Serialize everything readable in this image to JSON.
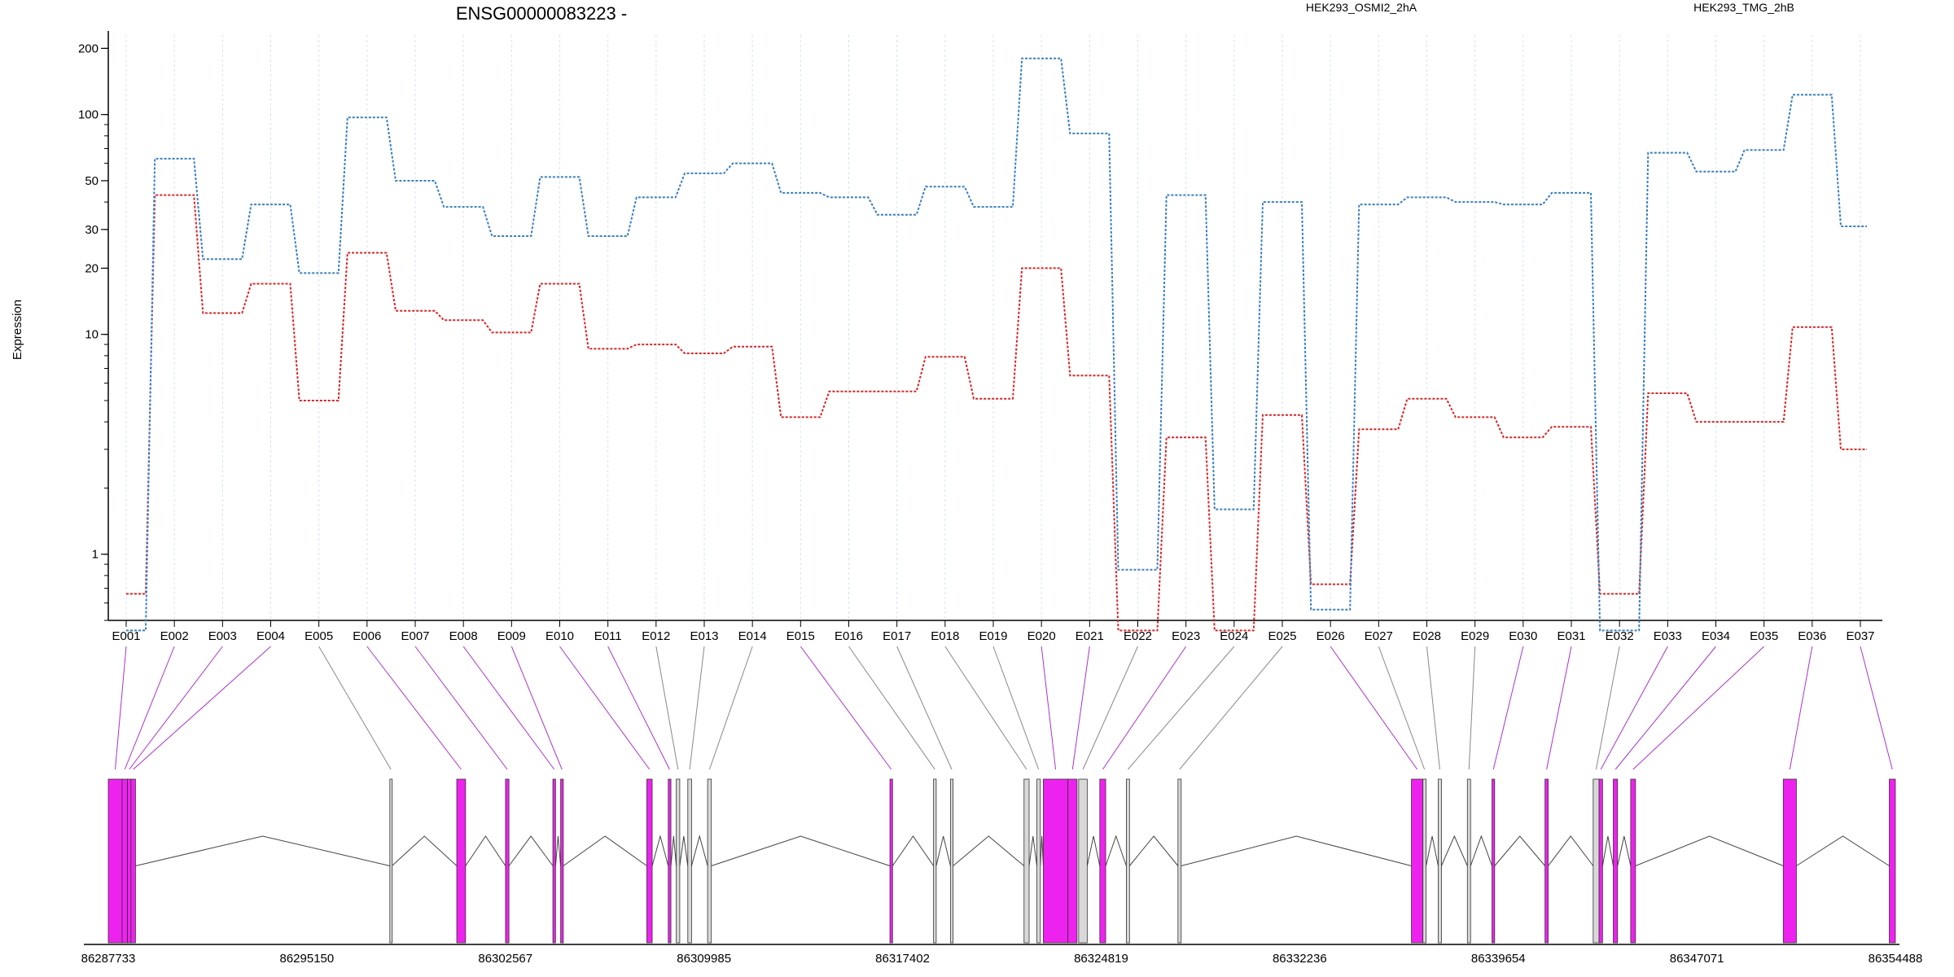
{
  "chart_data": {
    "type": "line",
    "title": "ENSG00000083223 -",
    "ylabel": "Expression",
    "yscale": "log",
    "ylim": [
      0.5,
      230
    ],
    "yticks": [
      "1",
      "10",
      "20",
      "30",
      "50",
      "100",
      "200"
    ],
    "categories": [
      "E001",
      "E002",
      "E003",
      "E004",
      "E005",
      "E006",
      "E007",
      "E008",
      "E009",
      "E010",
      "E011",
      "E012",
      "E013",
      "E014",
      "E015",
      "E016",
      "E017",
      "E018",
      "E019",
      "E020",
      "E021",
      "E022",
      "E023",
      "E024",
      "E025",
      "E026",
      "E027",
      "E028",
      "E029",
      "E030",
      "E031",
      "E032",
      "E033",
      "E034",
      "E035",
      "E036",
      "E037"
    ],
    "series": [
      {
        "name": "HEK293_OSMI2_2hA",
        "color": "#d62728",
        "values": [
          0.66,
          43,
          12.5,
          17,
          5.0,
          23.5,
          12.8,
          11.6,
          10.2,
          17,
          8.6,
          9,
          8.2,
          8.8,
          4.2,
          5.5,
          5.5,
          7.9,
          5.1,
          20,
          6.5,
          0.45,
          3.4,
          0.45,
          4.3,
          0.73,
          3.7,
          5.1,
          4.2,
          3.4,
          3.8,
          0.66,
          5.4,
          4.0,
          4.0,
          10.8,
          3.0
        ]
      },
      {
        "name": "HEK293_TMG_2hB",
        "color": "#3a7fc1",
        "values": [
          0.45,
          63,
          22,
          39,
          19,
          97,
          50,
          38,
          28,
          52,
          28,
          42,
          54,
          60,
          44,
          42,
          35,
          47,
          38,
          180,
          82,
          0.85,
          43,
          1.6,
          40,
          0.56,
          39,
          42,
          40,
          39,
          44,
          0.45,
          67,
          55,
          69,
          123,
          31
        ]
      }
    ],
    "genome_axis": {
      "tick_labels": [
        "86287733",
        "86295150",
        "86302567",
        "86309985",
        "86317402",
        "86324819",
        "86332236",
        "86339654",
        "86347071",
        "86354488"
      ],
      "start": 86287733,
      "end": 86354488,
      "exons": [
        {
          "id": "E001",
          "start": 86287733,
          "end": 86288250,
          "highlight": true
        },
        {
          "id": "E002",
          "start": 86288250,
          "end": 86288450,
          "highlight": true
        },
        {
          "id": "E003",
          "start": 86288450,
          "end": 86288580,
          "highlight": true
        },
        {
          "id": "E004",
          "start": 86288580,
          "end": 86288750,
          "highlight": true
        },
        {
          "id": "E005",
          "start": 86298250,
          "end": 86298330,
          "highlight": false
        },
        {
          "id": "E006",
          "start": 86300750,
          "end": 86301080,
          "highlight": true
        },
        {
          "id": "E007",
          "start": 86302570,
          "end": 86302700,
          "highlight": true
        },
        {
          "id": "E008",
          "start": 86304340,
          "end": 86304440,
          "highlight": true
        },
        {
          "id": "E009",
          "start": 86304630,
          "end": 86304730,
          "highlight": true
        },
        {
          "id": "E010",
          "start": 86307850,
          "end": 86308050,
          "highlight": true
        },
        {
          "id": "E011",
          "start": 86308650,
          "end": 86308750,
          "highlight": true
        },
        {
          "id": "E012",
          "start": 86308950,
          "end": 86309080,
          "highlight": false
        },
        {
          "id": "E013",
          "start": 86309380,
          "end": 86309520,
          "highlight": false
        },
        {
          "id": "E014",
          "start": 86310120,
          "end": 86310260,
          "highlight": false
        },
        {
          "id": "E015",
          "start": 86316930,
          "end": 86317030,
          "highlight": true
        },
        {
          "id": "E016",
          "start": 86318560,
          "end": 86318660,
          "highlight": false
        },
        {
          "id": "E017",
          "start": 86319190,
          "end": 86319290,
          "highlight": false
        },
        {
          "id": "E018",
          "start": 86321940,
          "end": 86322130,
          "highlight": false
        },
        {
          "id": "E019",
          "start": 86322420,
          "end": 86322550,
          "highlight": false
        },
        {
          "id": "E020",
          "start": 86322660,
          "end": 86323580,
          "highlight": true
        },
        {
          "id": "E021",
          "start": 86323580,
          "end": 86323920,
          "highlight": true
        },
        {
          "id": "E022",
          "start": 86323980,
          "end": 86324300,
          "highlight": false
        },
        {
          "id": "E023",
          "start": 86324770,
          "end": 86324990,
          "highlight": true
        },
        {
          "id": "E024",
          "start": 86325760,
          "end": 86325880,
          "highlight": false
        },
        {
          "id": "E025",
          "start": 86327690,
          "end": 86327810,
          "highlight": false
        },
        {
          "id": "E026",
          "start": 86336410,
          "end": 86336840,
          "highlight": true
        },
        {
          "id": "E027",
          "start": 86336840,
          "end": 86336960,
          "highlight": false
        },
        {
          "id": "E028",
          "start": 86337410,
          "end": 86337530,
          "highlight": false
        },
        {
          "id": "E029",
          "start": 86338500,
          "end": 86338620,
          "highlight": false
        },
        {
          "id": "E030",
          "start": 86339420,
          "end": 86339520,
          "highlight": true
        },
        {
          "id": "E031",
          "start": 86341400,
          "end": 86341520,
          "highlight": true
        },
        {
          "id": "E032",
          "start": 86343200,
          "end": 86343420,
          "highlight": false
        },
        {
          "id": "E033",
          "start": 86343420,
          "end": 86343550,
          "highlight": true
        },
        {
          "id": "E034",
          "start": 86343950,
          "end": 86344110,
          "highlight": true
        },
        {
          "id": "E035",
          "start": 86344600,
          "end": 86344780,
          "highlight": true
        },
        {
          "id": "E036",
          "start": 86350300,
          "end": 86350790,
          "highlight": true
        },
        {
          "id": "E037",
          "start": 86354260,
          "end": 86354488,
          "highlight": true
        }
      ]
    },
    "colors": {
      "exon_highlight": "#ee22ee",
      "exon_plain": "#d8d8d8",
      "connector_highlight": "#aa33cc",
      "connector_plain": "#888888",
      "grid": "#d6e2f0"
    }
  }
}
